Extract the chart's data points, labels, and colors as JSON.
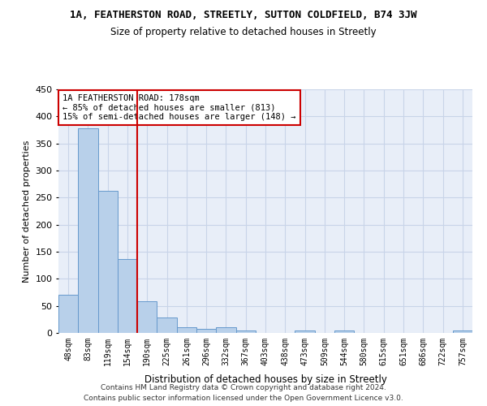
{
  "title_main": "1A, FEATHERSTON ROAD, STREETLY, SUTTON COLDFIELD, B74 3JW",
  "title_sub": "Size of property relative to detached houses in Streetly",
  "xlabel": "Distribution of detached houses by size in Streetly",
  "ylabel": "Number of detached properties",
  "footnote": "Contains HM Land Registry data © Crown copyright and database right 2024.\nContains public sector information licensed under the Open Government Licence v3.0.",
  "bar_labels": [
    "48sqm",
    "83sqm",
    "119sqm",
    "154sqm",
    "190sqm",
    "225sqm",
    "261sqm",
    "296sqm",
    "332sqm",
    "367sqm",
    "403sqm",
    "438sqm",
    "473sqm",
    "509sqm",
    "544sqm",
    "580sqm",
    "615sqm",
    "651sqm",
    "686sqm",
    "722sqm",
    "757sqm"
  ],
  "bar_values": [
    70,
    378,
    263,
    136,
    59,
    29,
    10,
    8,
    10,
    5,
    0,
    0,
    5,
    0,
    4,
    0,
    0,
    0,
    0,
    0,
    4
  ],
  "bar_color": "#b8d0ea",
  "bar_edge_color": "#6699cc",
  "vline_x": 4,
  "vline_color": "#cc0000",
  "annotation_line1": "1A FEATHERSTON ROAD: 178sqm",
  "annotation_line2": "← 85% of detached houses are smaller (813)",
  "annotation_line3": "15% of semi-detached houses are larger (148) →",
  "annotation_box_color": "#ffffff",
  "annotation_box_edge": "#cc0000",
  "ylim": [
    0,
    450
  ],
  "yticks": [
    0,
    50,
    100,
    150,
    200,
    250,
    300,
    350,
    400,
    450
  ],
  "grid_color": "#c8d4e8",
  "bg_color": "#e8eef8",
  "fig_width": 6.0,
  "fig_height": 5.0
}
